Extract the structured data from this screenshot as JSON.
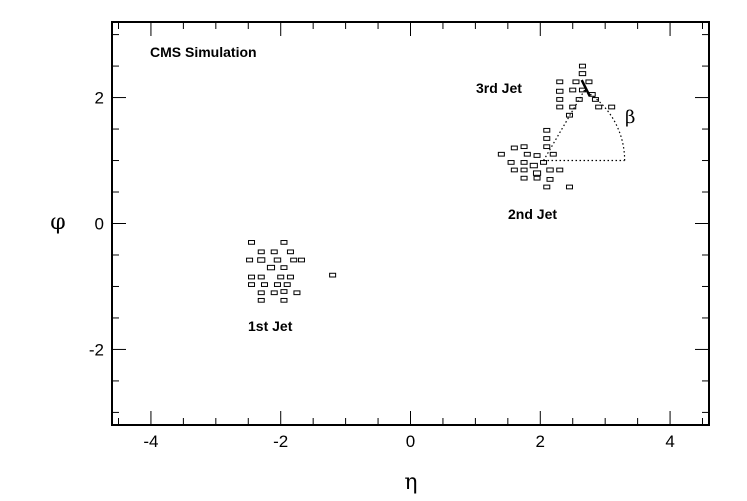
{
  "chart_data": {
    "type": "scatter",
    "title": "",
    "xlabel": "η",
    "ylabel": "φ",
    "xlim": [
      -4.6,
      4.6
    ],
    "ylim": [
      -3.2,
      3.2
    ],
    "xticks": [
      -4,
      -2,
      0,
      2,
      4
    ],
    "yticks": [
      -2,
      0,
      2
    ],
    "xtick_labels": [
      "-4",
      "-2",
      "0",
      "2",
      "4"
    ],
    "ytick_labels": [
      "-2",
      "0",
      "2"
    ],
    "grid": false,
    "marker": "open-box",
    "annotations": {
      "cms_label": "CMS Simulation",
      "jet1": "1st Jet",
      "jet2": "2nd Jet",
      "jet3": "3rd Jet",
      "beta": "β"
    },
    "jets": [
      {
        "label": "1st Jet",
        "points": [
          {
            "x": -2.45,
            "y": -0.3,
            "w": 0.5
          },
          {
            "x": -1.95,
            "y": -0.3,
            "w": 0.5
          },
          {
            "x": -2.3,
            "y": -0.45,
            "w": 0.6
          },
          {
            "x": -2.1,
            "y": -0.45,
            "w": 0.6
          },
          {
            "x": -1.85,
            "y": -0.45,
            "w": 0.6
          },
          {
            "x": -2.48,
            "y": -0.58,
            "w": 0.8
          },
          {
            "x": -2.3,
            "y": -0.58,
            "w": 1.0
          },
          {
            "x": -2.05,
            "y": -0.58,
            "w": 0.9
          },
          {
            "x": -1.8,
            "y": -0.58,
            "w": 0.7
          },
          {
            "x": -1.68,
            "y": -0.58,
            "w": 0.6
          },
          {
            "x": -2.15,
            "y": -0.7,
            "w": 1.0
          },
          {
            "x": -1.95,
            "y": -0.7,
            "w": 0.8
          },
          {
            "x": -2.45,
            "y": -0.85,
            "w": 0.5
          },
          {
            "x": -2.3,
            "y": -0.85,
            "w": 0.5
          },
          {
            "x": -2.0,
            "y": -0.85,
            "w": 0.5
          },
          {
            "x": -1.85,
            "y": -0.85,
            "w": 0.5
          },
          {
            "x": -1.2,
            "y": -0.82,
            "w": 0.5
          },
          {
            "x": -2.45,
            "y": -0.97,
            "w": 0.5
          },
          {
            "x": -2.25,
            "y": -0.97,
            "w": 0.5
          },
          {
            "x": -2.05,
            "y": -0.97,
            "w": 0.6
          },
          {
            "x": -1.9,
            "y": -0.97,
            "w": 0.5
          },
          {
            "x": -2.3,
            "y": -1.1,
            "w": 0.5
          },
          {
            "x": -2.1,
            "y": -1.1,
            "w": 0.6
          },
          {
            "x": -1.95,
            "y": -1.08,
            "w": 0.8
          },
          {
            "x": -2.3,
            "y": -1.22,
            "w": 0.5
          },
          {
            "x": -1.95,
            "y": -1.22,
            "w": 0.6
          },
          {
            "x": -1.75,
            "y": -1.1,
            "w": 0.5
          }
        ]
      },
      {
        "label": "2nd Jet",
        "points": [
          {
            "x": 2.1,
            "y": 1.48,
            "w": 0.5
          },
          {
            "x": 2.1,
            "y": 1.35,
            "w": 0.6
          },
          {
            "x": 1.75,
            "y": 1.22,
            "w": 0.5
          },
          {
            "x": 1.6,
            "y": 1.2,
            "w": 0.7
          },
          {
            "x": 2.1,
            "y": 1.22,
            "w": 0.6
          },
          {
            "x": 2.2,
            "y": 1.1,
            "w": 0.7
          },
          {
            "x": 1.4,
            "y": 1.1,
            "w": 0.5
          },
          {
            "x": 1.8,
            "y": 1.1,
            "w": 0.6
          },
          {
            "x": 1.95,
            "y": 1.08,
            "w": 0.6
          },
          {
            "x": 2.05,
            "y": 0.97,
            "w": 0.8
          },
          {
            "x": 1.55,
            "y": 0.97,
            "w": 0.5
          },
          {
            "x": 1.75,
            "y": 0.97,
            "w": 0.5
          },
          {
            "x": 1.9,
            "y": 0.92,
            "w": 1.0
          },
          {
            "x": 2.15,
            "y": 0.85,
            "w": 0.9
          },
          {
            "x": 1.95,
            "y": 0.8,
            "w": 1.0
          },
          {
            "x": 2.3,
            "y": 0.85,
            "w": 0.6
          },
          {
            "x": 1.6,
            "y": 0.85,
            "w": 0.5
          },
          {
            "x": 1.75,
            "y": 0.85,
            "w": 0.5
          },
          {
            "x": 1.75,
            "y": 0.72,
            "w": 0.5
          },
          {
            "x": 1.95,
            "y": 0.72,
            "w": 0.7
          },
          {
            "x": 2.15,
            "y": 0.7,
            "w": 0.5
          },
          {
            "x": 2.1,
            "y": 0.58,
            "w": 0.5
          },
          {
            "x": 2.45,
            "y": 0.58,
            "w": 0.5
          }
        ]
      },
      {
        "label": "3rd Jet",
        "points": [
          {
            "x": 2.65,
            "y": 2.5,
            "w": 0.5
          },
          {
            "x": 2.65,
            "y": 2.38,
            "w": 0.9
          },
          {
            "x": 2.55,
            "y": 2.25,
            "w": 0.6
          },
          {
            "x": 2.75,
            "y": 2.25,
            "w": 0.5
          },
          {
            "x": 2.3,
            "y": 2.25,
            "w": 0.6
          },
          {
            "x": 2.5,
            "y": 2.12,
            "w": 0.6
          },
          {
            "x": 2.3,
            "y": 2.1,
            "w": 0.9
          },
          {
            "x": 2.65,
            "y": 2.12,
            "w": 0.6
          },
          {
            "x": 2.8,
            "y": 2.05,
            "w": 0.5
          },
          {
            "x": 2.3,
            "y": 1.97,
            "w": 0.5
          },
          {
            "x": 2.6,
            "y": 1.97,
            "w": 0.5
          },
          {
            "x": 2.85,
            "y": 1.97,
            "w": 0.5
          },
          {
            "x": 2.3,
            "y": 1.85,
            "w": 0.5
          },
          {
            "x": 2.5,
            "y": 1.85,
            "w": 0.5
          },
          {
            "x": 2.9,
            "y": 1.85,
            "w": 0.5
          },
          {
            "x": 3.1,
            "y": 1.85,
            "w": 0.5
          },
          {
            "x": 2.45,
            "y": 1.72,
            "w": 0.5
          }
        ]
      }
    ],
    "beta_construction": {
      "jet2_axis": {
        "x": 2.05,
        "y": 1.0
      },
      "jet3_axis": {
        "x": 2.7,
        "y": 2.15
      },
      "arc_radius": 1.25
    }
  }
}
